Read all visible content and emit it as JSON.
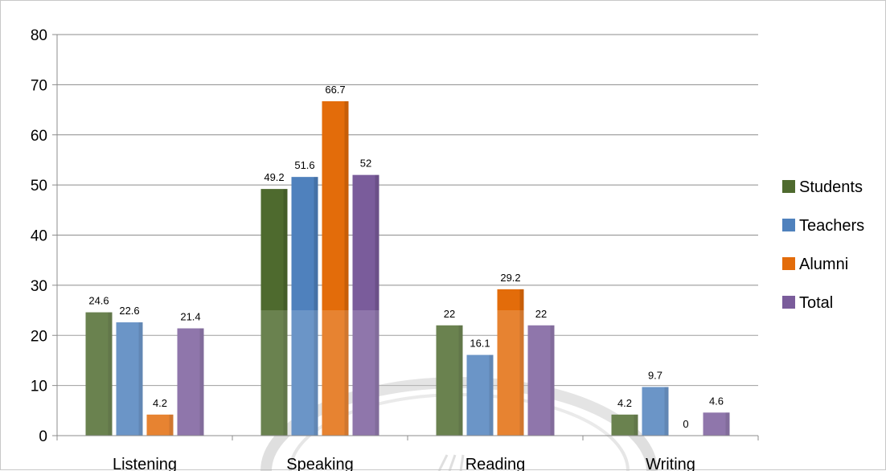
{
  "chart_data": {
    "type": "bar",
    "categories": [
      "Listening",
      "Speaking",
      "Reading",
      "Writing"
    ],
    "series": [
      {
        "name": "Students",
        "values": [
          24.6,
          49.2,
          22,
          4.2
        ],
        "color": "#4e6a2e"
      },
      {
        "name": "Teachers",
        "values": [
          22.6,
          51.6,
          16.1,
          9.7
        ],
        "color": "#4f81bd"
      },
      {
        "name": "Alumni",
        "values": [
          4.2,
          66.7,
          29.2,
          0
        ],
        "color": "#e36c0a"
      },
      {
        "name": "Total",
        "values": [
          21.4,
          52,
          22,
          4.6
        ],
        "color": "#7a5c9b"
      }
    ],
    "y_ticks": [
      "0",
      "10",
      "20",
      "30",
      "40",
      "50",
      "60",
      "70",
      "80"
    ],
    "ylim": [
      0,
      80
    ],
    "grid": true,
    "legend_position": "right",
    "data_labels": true
  }
}
